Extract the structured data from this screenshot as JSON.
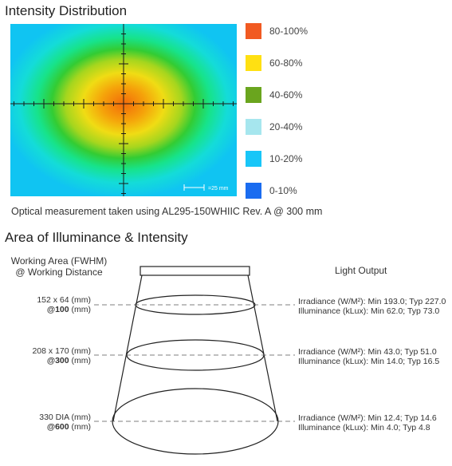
{
  "intensity": {
    "title": "Intensity Distribution",
    "scale_label": "=25 mm",
    "legend": [
      {
        "label": "80-100%",
        "color": "#f15a22"
      },
      {
        "label": "60-80%",
        "color": "#ffe012"
      },
      {
        "label": "40-60%",
        "color": "#6aa51e"
      },
      {
        "label": "20-40%",
        "color": "#a6e6ee"
      },
      {
        "label": "10-20%",
        "color": "#18c6f8"
      },
      {
        "label": "0-10%",
        "color": "#1a6cf0"
      }
    ],
    "note": "Optical measurement taken using AL295-150WHIIC Rev. A @ 300 mm"
  },
  "illuminance": {
    "title": "Area of Illuminance & Intensity",
    "working_area_header": [
      "Working Area (FWHM)",
      "@ Working Distance"
    ],
    "light_output_header": "Light Output",
    "rows": [
      {
        "area": "152 x 64 (mm)",
        "distance_value": "@100",
        "distance_unit": " (mm)",
        "irradiance": "Irradiance (W/M²):  Min 193.0; Typ 227.0",
        "illuminance": "Illuminance  (kLux):   Min 62.0; Typ 73.0"
      },
      {
        "area": "208 x 170 (mm)",
        "distance_value": "@300",
        "distance_unit": " (mm)",
        "irradiance": "Irradiance (W/M²):  Min 43.0; Typ 51.0",
        "illuminance": "Illuminance  (kLux):    Min 14.0; Typ 16.5"
      },
      {
        "area": "330 DIA (mm)",
        "distance_value": "@600",
        "distance_unit": " (mm)",
        "irradiance": "Irradiance (W/M²): Min 12.4; Typ 14.6",
        "illuminance": "Illuminance  (kLux):   Min 4.0; Typ 4.8"
      }
    ]
  }
}
